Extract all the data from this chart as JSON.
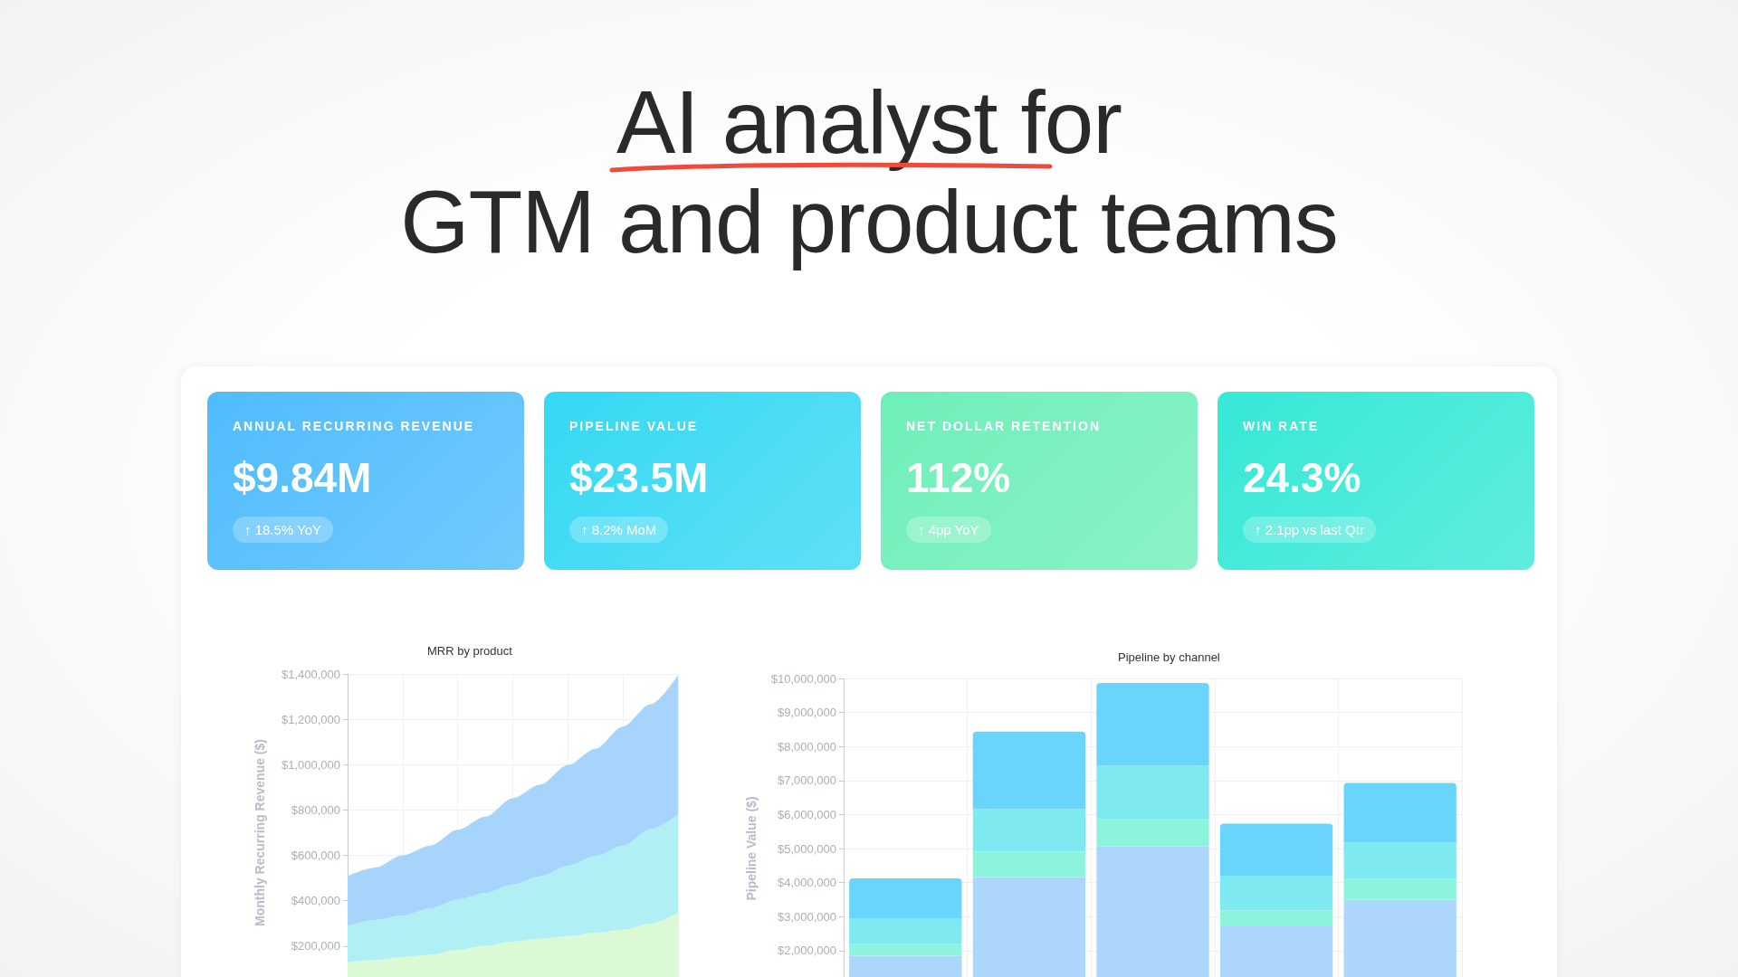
{
  "chart_data": [
    {
      "type": "other",
      "title": "AI analyst for",
      "subtitle": "GTM and product teams",
      "annotations": [
        "ANNUAL RECURRING REVENUE",
        "$9.84M",
        "↑ 18.5% YoY",
        "PIPELINE VALUE",
        "$23.5M",
        "↑ 8.2% MoM",
        "NET DOLLAR RETENTION",
        "112%",
        "↑ 4pp YoY",
        "WIN RATE",
        "24.3%",
        "↑ 2.1pp vs last Qtr"
      ],
      "colors": [
        "#4fbcfc",
        "#35d8f3",
        "#6eefb8",
        "#36e8d6"
      ]
    },
    {
      "type": "area",
      "title": "MRR by product",
      "ylabel": "Monthly Recurring Revenue ($)",
      "stacked": true,
      "grid": true,
      "tick_labels": "y",
      "categories": [
        null,
        null,
        null,
        null,
        null,
        null,
        null,
        null,
        null,
        null,
        null,
        null,
        null
      ],
      "series": [
        {
          "color": "#dcf9d6",
          "values": [
            130000,
            139000,
            152000,
            162000,
            183000,
            201000,
            219000,
            232000,
            244000,
            258000,
            272000,
            299000,
            348000
          ]
        },
        {
          "color": "#b0f0f4",
          "values": [
            159000,
            176000,
            183000,
            204000,
            223000,
            233000,
            253000,
            276000,
            310000,
            339000,
            371000,
            416000,
            431000
          ]
        },
        {
          "color": "#a6d4fb",
          "values": [
            219000,
            231000,
            265000,
            277000,
            307000,
            337000,
            380000,
            404000,
            444000,
            473000,
            525000,
            551000,
            616000
          ]
        }
      ],
      "ylim": [
        0,
        1400000
      ],
      "yticks": [
        {
          "value": 200000,
          "label": "$200,000"
        },
        {
          "value": 400000,
          "label": "$400,000"
        },
        {
          "value": 600000,
          "label": "$600,000"
        },
        {
          "value": 800000,
          "label": "$800,000"
        },
        {
          "value": 1000000,
          "label": "$1,000,000"
        },
        {
          "value": 1200000,
          "label": "$1,200,000"
        },
        {
          "value": 1400000,
          "label": "$1,400,000"
        }
      ]
    },
    {
      "type": "bar",
      "title": "Pipeline by channel",
      "ylabel": "Pipeline Value ($)",
      "stacked": true,
      "grid": true,
      "tick_labels": "y",
      "categories": [
        null,
        null,
        null,
        null,
        null
      ],
      "series": [
        {
          "color": "#acd6fb",
          "values": [
            1850000,
            4160000,
            5060000,
            2710000,
            3490000
          ]
        },
        {
          "color": "#8ef3dc",
          "values": [
            350000,
            750000,
            800000,
            470000,
            610000
          ]
        },
        {
          "color": "#7ee9f1",
          "values": [
            750000,
            1250000,
            1580000,
            1020000,
            1070000
          ]
        },
        {
          "color": "#69d5fd",
          "values": [
            1170000,
            2280000,
            2430000,
            1530000,
            1760000
          ]
        }
      ],
      "ylim": [
        0,
        10000000
      ],
      "yticks": [
        {
          "value": 2000000,
          "label": "$2,000,000"
        },
        {
          "value": 3000000,
          "label": "$3,000,000"
        },
        {
          "value": 4000000,
          "label": "$4,000,000"
        },
        {
          "value": 5000000,
          "label": "$5,000,000"
        },
        {
          "value": 6000000,
          "label": "$6,000,000"
        },
        {
          "value": 7000000,
          "label": "$7,000,000"
        },
        {
          "value": 8000000,
          "label": "$8,000,000"
        },
        {
          "value": 9000000,
          "label": "$9,000,000"
        },
        {
          "value": 10000000,
          "label": "$10,000,000"
        }
      ]
    }
  ]
}
